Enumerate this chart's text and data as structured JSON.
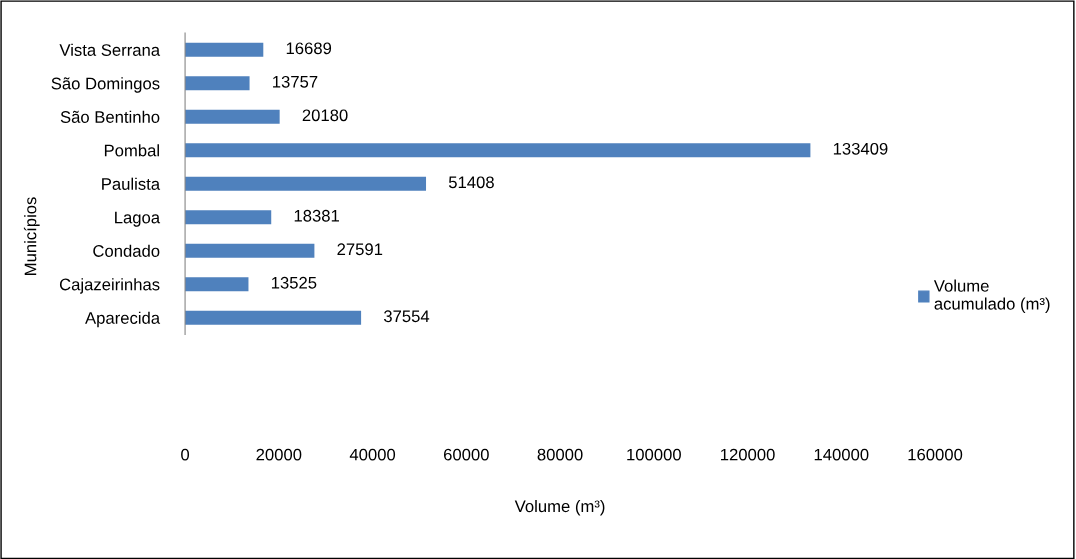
{
  "chart_data": {
    "type": "bar",
    "orientation": "horizontal",
    "categories": [
      "Vista Serrana",
      "São Domingos",
      "São Bentinho",
      "Pombal",
      "Paulista",
      "Lagoa",
      "Condado",
      "Cajazeirinhas",
      "Aparecida"
    ],
    "series": [
      {
        "name": "Volume\nacumulado (m³)",
        "color": "#4f81bd",
        "values": [
          16689,
          13757,
          20180,
          133409,
          51408,
          18381,
          27591,
          13525,
          37554
        ]
      }
    ],
    "xlim": [
      0,
      160000
    ],
    "xticks": [
      0,
      20000,
      40000,
      60000,
      80000,
      100000,
      120000,
      140000,
      160000
    ],
    "xlabel": "Volume (m³)",
    "ylabel": "Municípios",
    "data_labels": true,
    "grid": false,
    "legend": "right"
  }
}
